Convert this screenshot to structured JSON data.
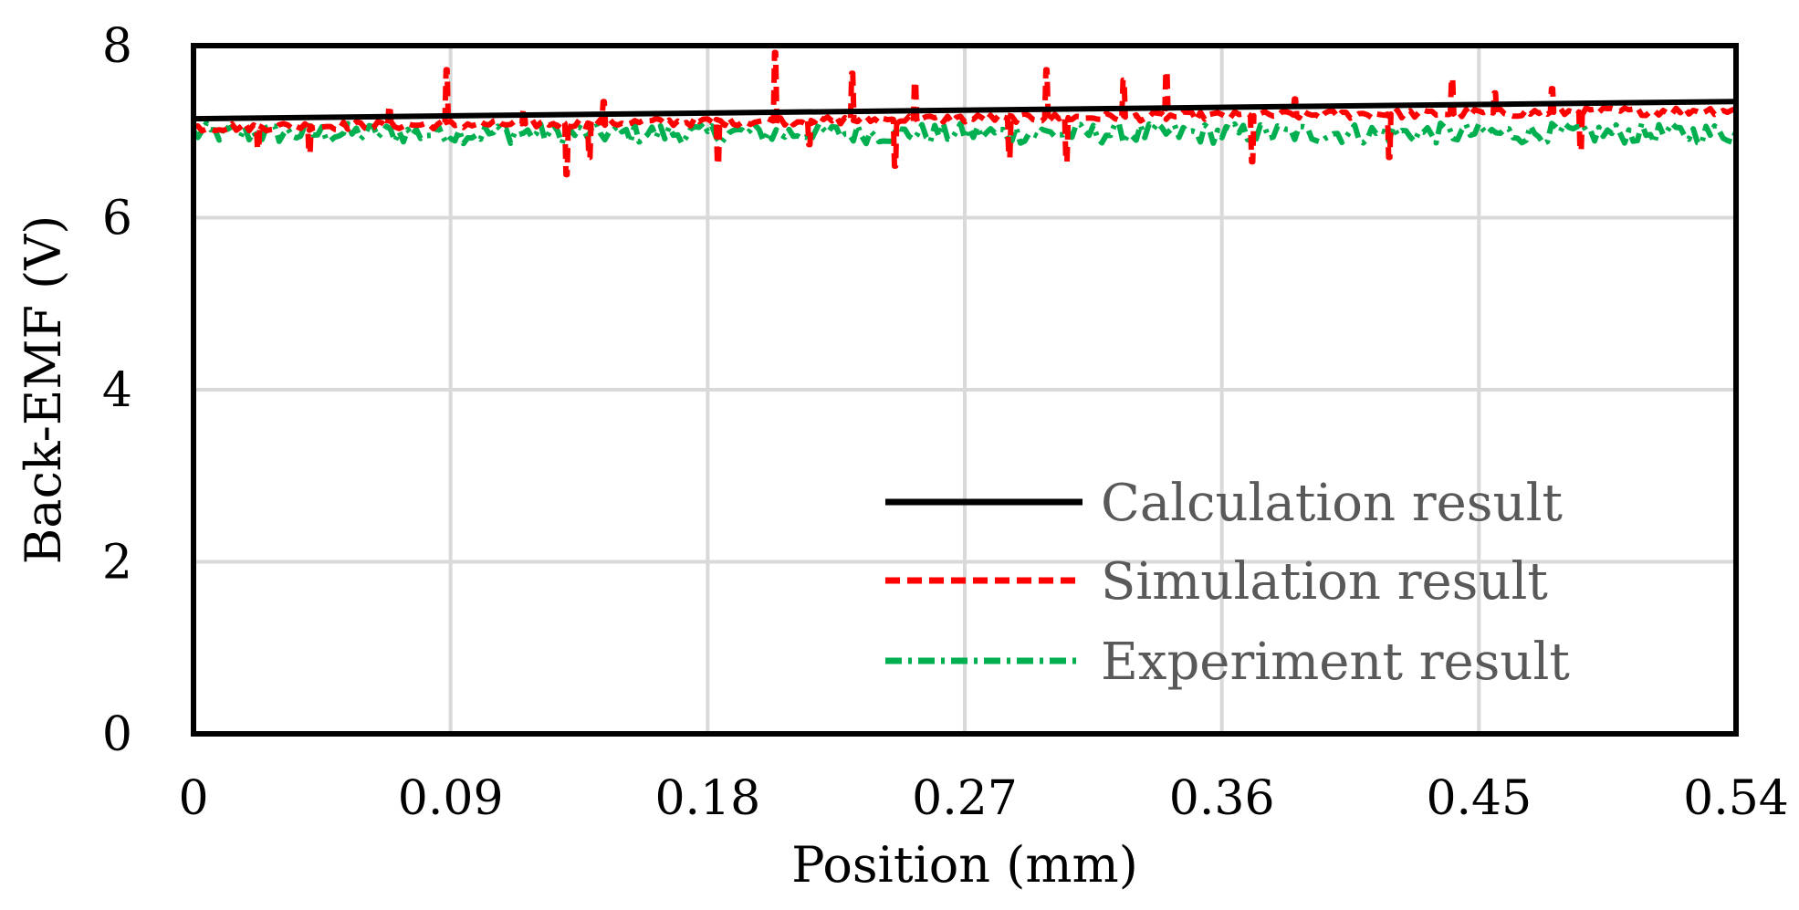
{
  "chart_data": {
    "type": "line",
    "title": "",
    "xlabel": "Position (mm)",
    "ylabel": "Back-EMF (V)",
    "xlim": [
      0,
      0.54
    ],
    "ylim": [
      0,
      8
    ],
    "x_ticks": [
      "0",
      "0.09",
      "0.18",
      "0.27",
      "0.36",
      "0.45",
      "0.54"
    ],
    "y_ticks": [
      "0",
      "2",
      "4",
      "6",
      "8"
    ],
    "x_tick_values": [
      0,
      0.09,
      0.18,
      0.27,
      0.36,
      0.45,
      0.54
    ],
    "y_tick_values": [
      0,
      2,
      4,
      6,
      8
    ],
    "grid": true,
    "legend_position": "bottom-right",
    "series": [
      {
        "name": "Calculation result",
        "color": "#000000",
        "style": "solid",
        "x": [
          0,
          0.54
        ],
        "y": [
          7.15,
          7.35
        ]
      },
      {
        "name": "Simulation result",
        "color": "#ff0000",
        "style": "dashed",
        "trend": {
          "x": [
            0,
            0.54
          ],
          "y": [
            7.05,
            7.25
          ]
        },
        "noise_amplitude": 0.05,
        "spikes": [
          {
            "x": 0.022,
            "y": 6.8
          },
          {
            "x": 0.04,
            "y": 6.75
          },
          {
            "x": 0.068,
            "y": 7.3
          },
          {
            "x": 0.088,
            "y": 7.72
          },
          {
            "x": 0.115,
            "y": 7.25
          },
          {
            "x": 0.13,
            "y": 6.5
          },
          {
            "x": 0.138,
            "y": 6.7
          },
          {
            "x": 0.143,
            "y": 7.35
          },
          {
            "x": 0.183,
            "y": 6.62
          },
          {
            "x": 0.203,
            "y": 7.92
          },
          {
            "x": 0.215,
            "y": 6.85
          },
          {
            "x": 0.23,
            "y": 7.68
          },
          {
            "x": 0.245,
            "y": 6.6
          },
          {
            "x": 0.252,
            "y": 7.58
          },
          {
            "x": 0.285,
            "y": 6.7
          },
          {
            "x": 0.298,
            "y": 7.72
          },
          {
            "x": 0.305,
            "y": 6.65
          },
          {
            "x": 0.325,
            "y": 7.6
          },
          {
            "x": 0.34,
            "y": 7.7
          },
          {
            "x": 0.37,
            "y": 6.65
          },
          {
            "x": 0.385,
            "y": 7.38
          },
          {
            "x": 0.418,
            "y": 6.7
          },
          {
            "x": 0.44,
            "y": 7.62
          },
          {
            "x": 0.455,
            "y": 7.45
          },
          {
            "x": 0.475,
            "y": 7.5
          },
          {
            "x": 0.485,
            "y": 6.78
          }
        ]
      },
      {
        "name": "Experiment result",
        "color": "#00b050",
        "style": "dash-dot",
        "trend": {
          "x": [
            0,
            0.54
          ],
          "y": [
            6.98,
            6.98
          ]
        },
        "noise_amplitude": 0.12
      }
    ]
  }
}
